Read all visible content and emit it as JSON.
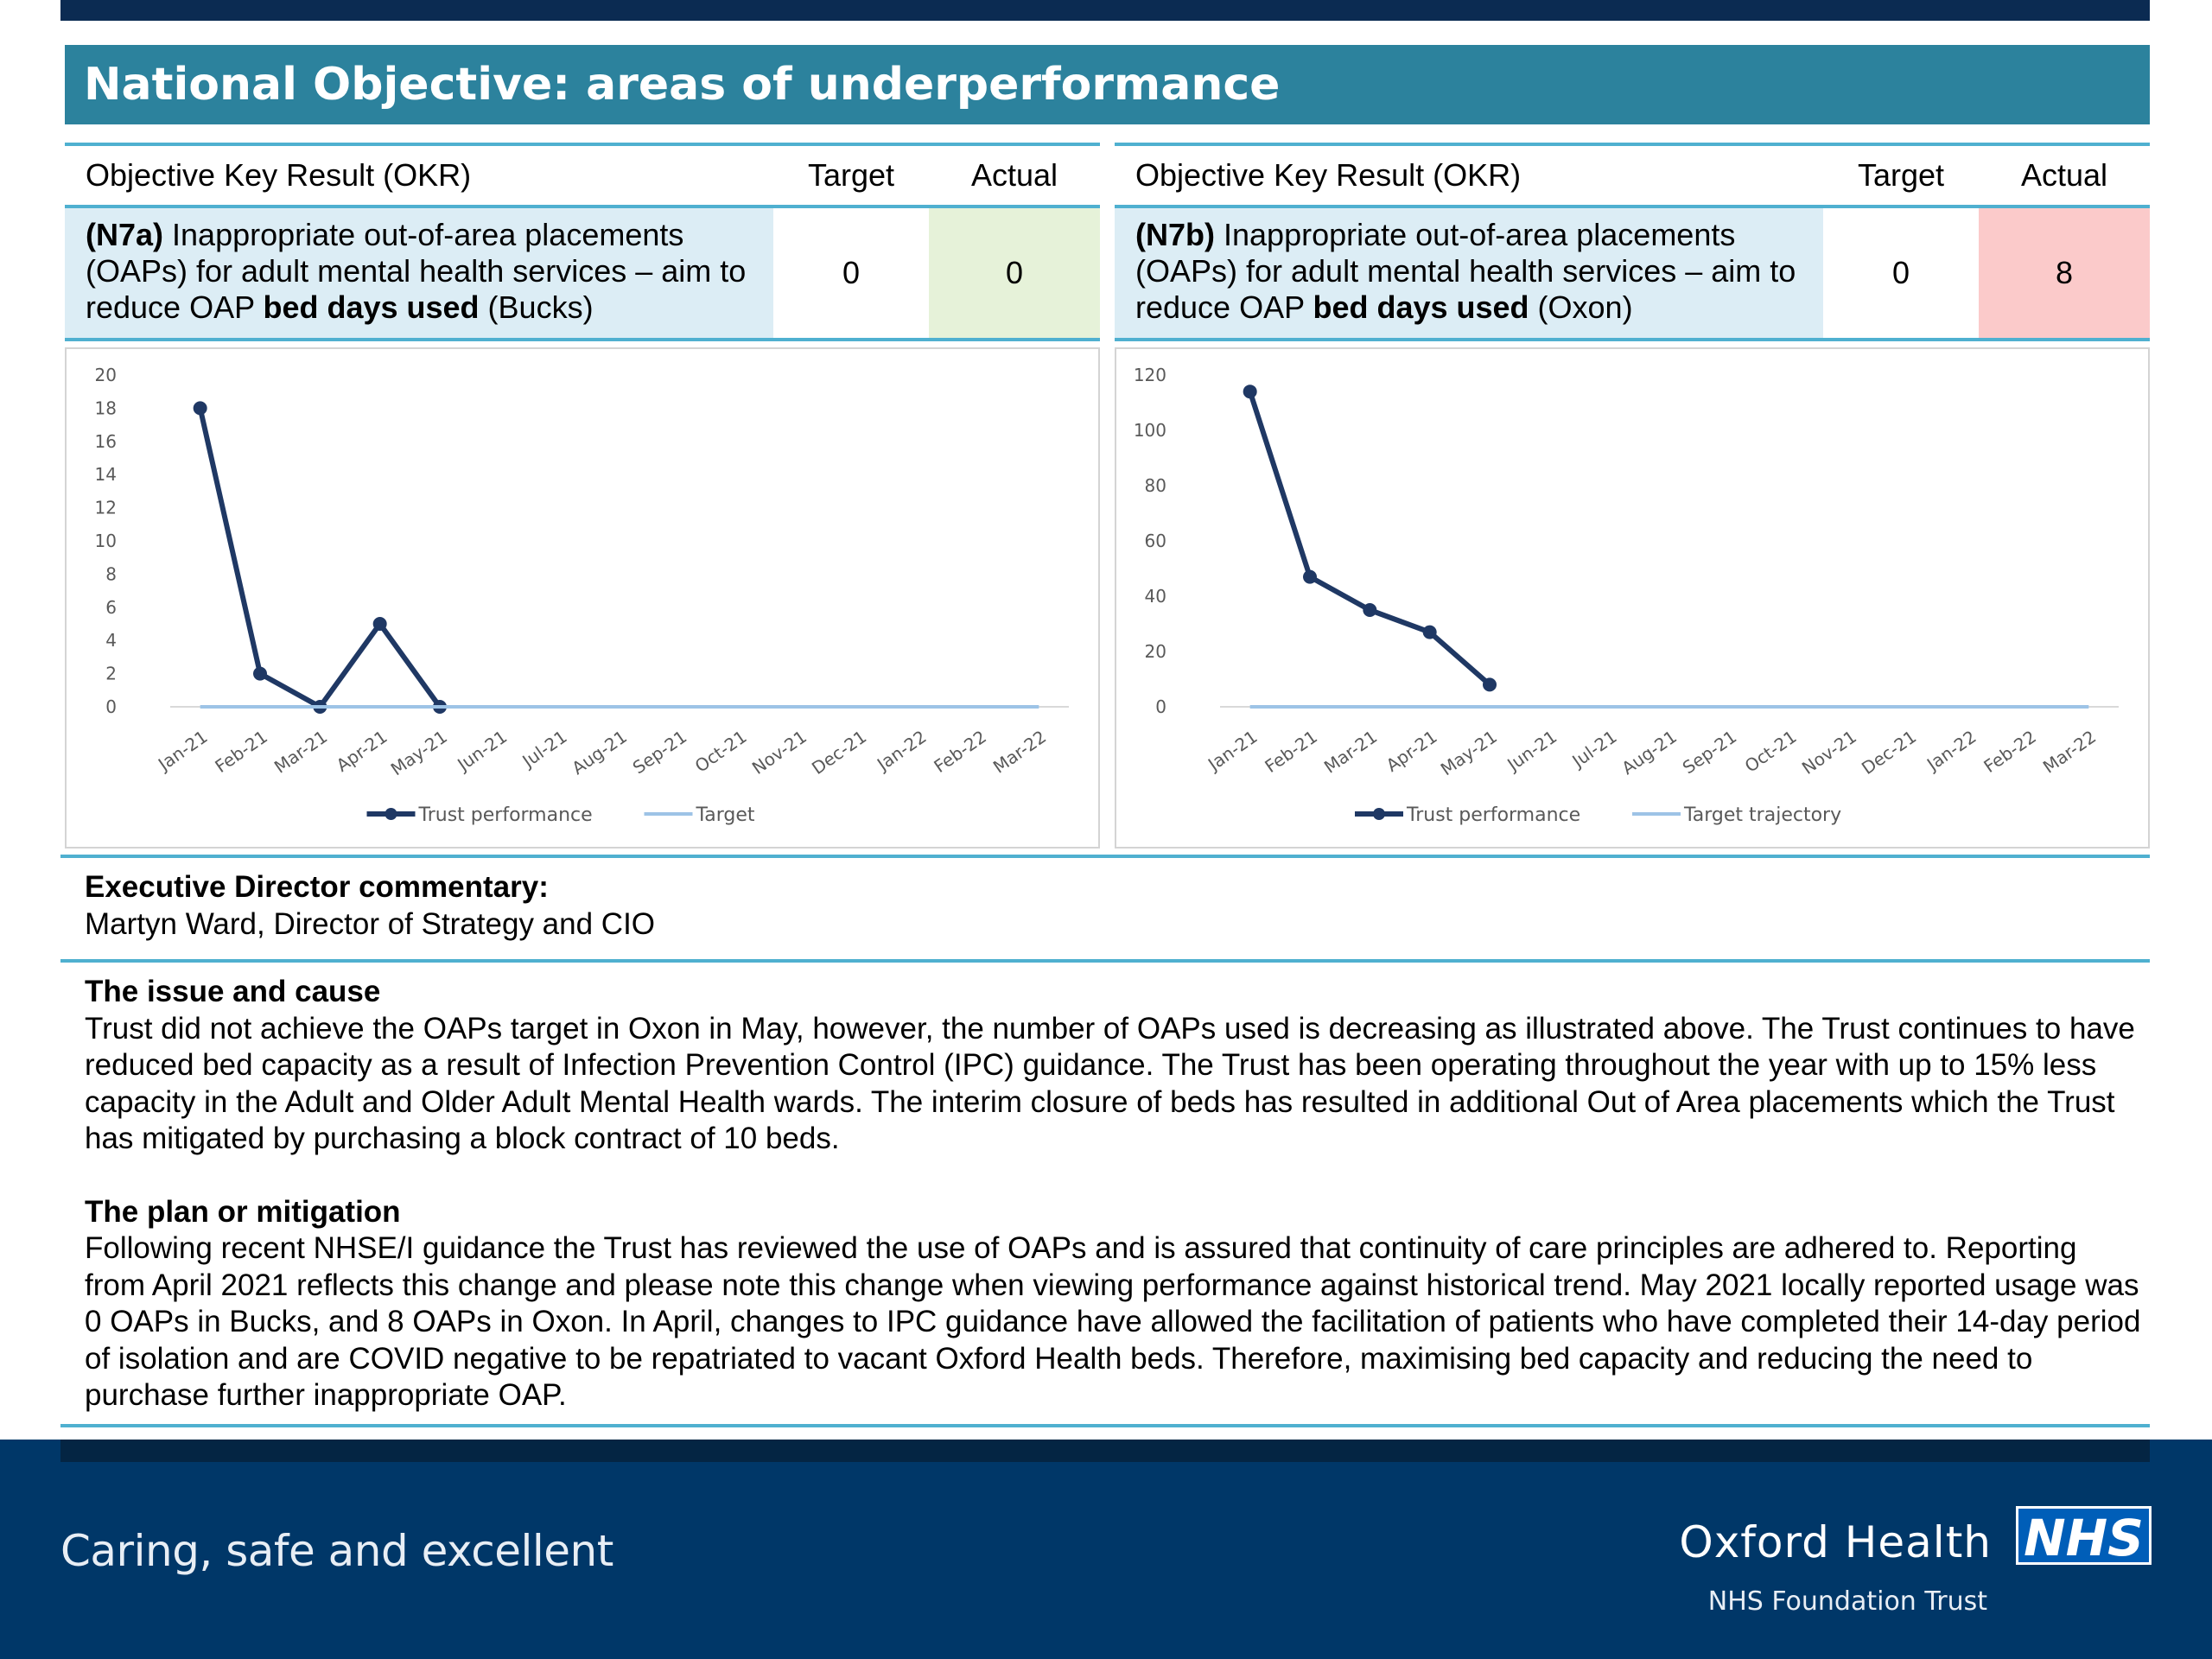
{
  "page": {
    "title": "National Objective: areas of underperformance"
  },
  "okr_left": {
    "col_okr": "Objective Key Result (OKR)",
    "col_target": "Target",
    "col_actual": "Actual",
    "code": "(N7a)",
    "text_pre": " Inappropriate out-of-area placements (OAPs) for adult mental health services – aim to reduce OAP ",
    "text_bold": "bed days used",
    "text_post": " (Bucks)",
    "target": "0",
    "actual": "0",
    "actual_status_color": "#e6f2d9"
  },
  "okr_right": {
    "col_okr": "Objective Key Result (OKR)",
    "col_target": "Target",
    "col_actual": "Actual",
    "code": "(N7b)",
    "text_pre": " Inappropriate out-of-area placements (OAPs) for adult mental health services – aim to reduce OAP ",
    "text_bold": "bed days used",
    "text_post": " (Oxon)",
    "target": "0",
    "actual": "8",
    "actual_status_color": "#fbcaca"
  },
  "chart_data": [
    {
      "type": "line",
      "categories": [
        "Jan-21",
        "Feb-21",
        "Mar-21",
        "Apr-21",
        "May-21",
        "Jun-21",
        "Jul-21",
        "Aug-21",
        "Sep-21",
        "Oct-21",
        "Nov-21",
        "Dec-21",
        "Jan-22",
        "Feb-22",
        "Mar-22"
      ],
      "series": [
        {
          "name": "Trust performance",
          "color": "#1f3864",
          "values": [
            18,
            2,
            0,
            5,
            0,
            null,
            null,
            null,
            null,
            null,
            null,
            null,
            null,
            null,
            null
          ]
        },
        {
          "name": "Target",
          "color": "#9dc3e6",
          "values": [
            0,
            0,
            0,
            0,
            0,
            0,
            0,
            0,
            0,
            0,
            0,
            0,
            0,
            0,
            0
          ]
        }
      ],
      "yticks": [
        0,
        2,
        4,
        6,
        8,
        10,
        12,
        14,
        16,
        18,
        20
      ],
      "ylim": [
        0,
        20
      ],
      "legend": "bottom"
    },
    {
      "type": "line",
      "categories": [
        "Jan-21",
        "Feb-21",
        "Mar-21",
        "Apr-21",
        "May-21",
        "Jun-21",
        "Jul-21",
        "Aug-21",
        "Sep-21",
        "Oct-21",
        "Nov-21",
        "Dec-21",
        "Jan-22",
        "Feb-22",
        "Mar-22"
      ],
      "series": [
        {
          "name": "Trust performance",
          "color": "#1f3864",
          "values": [
            114,
            47,
            35,
            27,
            8,
            null,
            null,
            null,
            null,
            null,
            null,
            null,
            null,
            null,
            null
          ]
        },
        {
          "name": "Target trajectory",
          "color": "#9dc3e6",
          "values": [
            0,
            0,
            0,
            0,
            0,
            0,
            0,
            0,
            0,
            0,
            0,
            0,
            0,
            0,
            0
          ]
        }
      ],
      "yticks": [
        0,
        20,
        40,
        60,
        80,
        100,
        120
      ],
      "ylim": [
        0,
        120
      ],
      "legend": "bottom"
    }
  ],
  "commentary": {
    "heading": "Executive Director commentary:",
    "author": "Martyn Ward, Director of Strategy and CIO"
  },
  "issue": {
    "heading": "The issue and cause",
    "body": "Trust did not achieve the OAPs target in Oxon in May, however, the number of OAPs used is decreasing as illustrated above. The Trust continues to have reduced bed capacity as a result of Infection Prevention Control (IPC) guidance.  The Trust has been operating throughout the year with up to 15% less capacity in the Adult and Older Adult Mental Health wards.   The interim closure of beds has resulted in additional Out of Area placements which the Trust has mitigated by purchasing a block contract of 10 beds."
  },
  "plan": {
    "heading": "The plan or mitigation",
    "body": "Following recent NHSE/I guidance the Trust has reviewed the use of OAPs and is assured that continuity of care principles are adhered to.  Reporting from April 2021 reflects this change and please note this change when viewing performance against historical trend.  May 2021 locally reported usage was 0 OAPs in Bucks, and 8 OAPs in Oxon. In April, changes to IPC guidance have allowed the facilitation of patients who have completed their 14-day period of isolation and are COVID negative to be repatriated to vacant Oxford Health beds. Therefore, maximising bed capacity and reducing the need to purchase further inappropriate OAP."
  },
  "footer": {
    "tagline": "Caring, safe and excellent",
    "org_name": "Oxford Health",
    "logo_text": "NHS",
    "org_sub": "NHS Foundation Trust"
  }
}
